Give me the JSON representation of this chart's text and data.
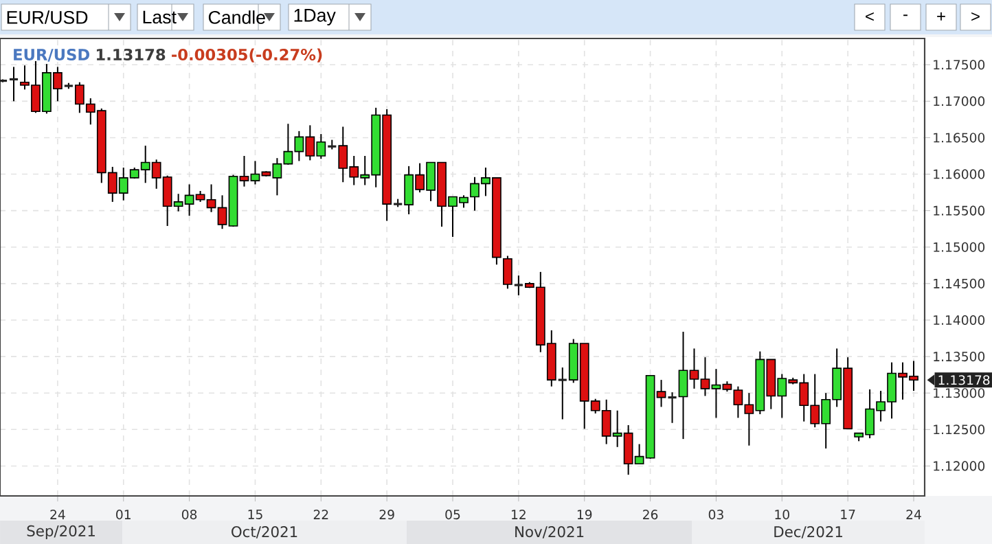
{
  "chart_data": {
    "type": "candlestick",
    "title": "EUR/USD",
    "subtitle": "1.13178",
    "annotations": [
      "-0.00305(-0.27%)",
      "EUR/USD",
      "Last",
      "Candle",
      "1Day",
      "<",
      "-",
      "+",
      ">",
      "Sep/2021",
      "Oct/2021",
      "Nov/2021",
      "Dec/2021",
      "1.13178"
    ],
    "categories": [
      null,
      null,
      null,
      null,
      null,
      "24",
      null,
      null,
      null,
      null,
      null,
      "01",
      null,
      null,
      null,
      null,
      null,
      "08",
      null,
      null,
      null,
      null,
      null,
      "15",
      null,
      null,
      null,
      null,
      null,
      "22",
      null,
      null,
      null,
      null,
      null,
      "29",
      null,
      null,
      null,
      null,
      null,
      "05",
      null,
      null,
      null,
      null,
      null,
      "12",
      null,
      null,
      null,
      null,
      null,
      "19",
      null,
      null,
      null,
      null,
      null,
      "26",
      null,
      null,
      null,
      null,
      null,
      "03",
      null,
      null,
      null,
      null,
      null,
      "10",
      null,
      null,
      null,
      null,
      null,
      "17",
      null,
      null,
      null,
      null,
      null,
      "24"
    ],
    "ohlc": [
      [
        1.1728,
        1.173,
        1.1726,
        1.1728
      ],
      [
        1.173,
        1.1747,
        1.17,
        1.173
      ],
      [
        1.1726,
        1.1749,
        1.1716,
        1.1722
      ],
      [
        1.1722,
        1.1755,
        1.1684,
        1.1686
      ],
      [
        1.1686,
        1.1751,
        1.1683,
        1.1739
      ],
      [
        1.1739,
        1.1747,
        1.17,
        1.1717
      ],
      [
        1.1721,
        1.1725,
        1.1717,
        1.1721
      ],
      [
        1.1722,
        1.1726,
        1.1684,
        1.1696
      ],
      [
        1.1696,
        1.1704,
        1.1668,
        1.1685
      ],
      [
        1.1687,
        1.169,
        1.1588,
        1.1602
      ],
      [
        1.1602,
        1.161,
        1.1562,
        1.1574
      ],
      [
        1.1574,
        1.1609,
        1.1564,
        1.1595
      ],
      [
        1.1595,
        1.1609,
        1.1594,
        1.1606
      ],
      [
        1.1606,
        1.1639,
        1.1588,
        1.1616
      ],
      [
        1.1616,
        1.162,
        1.158,
        1.1595
      ],
      [
        1.1596,
        1.1598,
        1.1529,
        1.1556
      ],
      [
        1.1556,
        1.1573,
        1.1549,
        1.1562
      ],
      [
        1.1559,
        1.1586,
        1.1543,
        1.1571
      ],
      [
        1.1572,
        1.1577,
        1.1562,
        1.1565
      ],
      [
        1.1565,
        1.1586,
        1.1548,
        1.1554
      ],
      [
        1.1554,
        1.1571,
        1.1525,
        1.1531
      ],
      [
        1.1529,
        1.1599,
        1.1528,
        1.1597
      ],
      [
        1.1597,
        1.1625,
        1.1583,
        1.1591
      ],
      [
        1.1591,
        1.1618,
        1.1586,
        1.16
      ],
      [
        1.1603,
        1.1604,
        1.1597,
        1.1598
      ],
      [
        1.1595,
        1.1622,
        1.1571,
        1.1614
      ],
      [
        1.1614,
        1.1669,
        1.1613,
        1.1631
      ],
      [
        1.1631,
        1.1659,
        1.1618,
        1.1651
      ],
      [
        1.1651,
        1.1667,
        1.1619,
        1.1625
      ],
      [
        1.1625,
        1.1655,
        1.1621,
        1.1644
      ],
      [
        1.1638,
        1.1647,
        1.1634,
        1.1638
      ],
      [
        1.1639,
        1.1665,
        1.1589,
        1.1608
      ],
      [
        1.161,
        1.1625,
        1.1585,
        1.1596
      ],
      [
        1.1595,
        1.1625,
        1.1585,
        1.1599
      ],
      [
        1.1599,
        1.1691,
        1.1582,
        1.1681
      ],
      [
        1.1681,
        1.1689,
        1.1536,
        1.1559
      ],
      [
        1.1559,
        1.1566,
        1.1555,
        1.1559
      ],
      [
        1.1558,
        1.1611,
        1.1545,
        1.1599
      ],
      [
        1.1599,
        1.1615,
        1.1575,
        1.1579
      ],
      [
        1.1578,
        1.1616,
        1.1563,
        1.1616
      ],
      [
        1.1616,
        1.1616,
        1.1528,
        1.1556
      ],
      [
        1.1556,
        1.1569,
        1.1514,
        1.1569
      ],
      [
        1.1561,
        1.1571,
        1.1554,
        1.1568
      ],
      [
        1.1569,
        1.1596,
        1.155,
        1.1587
      ],
      [
        1.1587,
        1.1609,
        1.157,
        1.1595
      ],
      [
        1.1595,
        1.1595,
        1.1476,
        1.1486
      ],
      [
        1.1484,
        1.1488,
        1.1443,
        1.1449
      ],
      [
        1.1448,
        1.1461,
        1.1434,
        1.1448
      ],
      [
        1.145,
        1.1452,
        1.1444,
        1.1445
      ],
      [
        1.1445,
        1.1466,
        1.1356,
        1.1366
      ],
      [
        1.1368,
        1.1386,
        1.1309,
        1.1318
      ],
      [
        1.1318,
        1.1335,
        1.1264,
        1.1318
      ],
      [
        1.1318,
        1.1374,
        1.1314,
        1.1368
      ],
      [
        1.1368,
        1.1368,
        1.1251,
        1.1289
      ],
      [
        1.1289,
        1.1292,
        1.1272,
        1.1276
      ],
      [
        1.1276,
        1.1291,
        1.123,
        1.1241
      ],
      [
        1.1241,
        1.1276,
        1.1226,
        1.1245
      ],
      [
        1.1245,
        1.1256,
        1.1188,
        1.1203
      ],
      [
        1.1203,
        1.123,
        1.1203,
        1.1213
      ],
      [
        1.1211,
        1.1324,
        1.121,
        1.1324
      ],
      [
        1.1302,
        1.1318,
        1.1281,
        1.1294
      ],
      [
        1.1294,
        1.1301,
        1.1259,
        1.1294
      ],
      [
        1.1295,
        1.1384,
        1.1237,
        1.1331
      ],
      [
        1.1331,
        1.1361,
        1.1306,
        1.1319
      ],
      [
        1.1319,
        1.1349,
        1.1296,
        1.1306
      ],
      [
        1.1306,
        1.1333,
        1.1266,
        1.1311
      ],
      [
        1.1312,
        1.1316,
        1.1302,
        1.1305
      ],
      [
        1.1304,
        1.1309,
        1.1266,
        1.1284
      ],
      [
        1.1284,
        1.13,
        1.1228,
        1.1272
      ],
      [
        1.1276,
        1.1357,
        1.1271,
        1.1346
      ],
      [
        1.1346,
        1.1346,
        1.1278,
        1.1296
      ],
      [
        1.1296,
        1.1326,
        1.1266,
        1.132
      ],
      [
        1.1318,
        1.1321,
        1.1312,
        1.1314
      ],
      [
        1.1314,
        1.1326,
        1.1261,
        1.1283
      ],
      [
        1.1283,
        1.1326,
        1.1253,
        1.1258
      ],
      [
        1.1258,
        1.13,
        1.1224,
        1.1291
      ],
      [
        1.1291,
        1.1361,
        1.1281,
        1.1334
      ],
      [
        1.1334,
        1.1349,
        1.1251,
        1.1251
      ],
      [
        1.124,
        1.1245,
        1.1234,
        1.1245
      ],
      [
        1.1243,
        1.1305,
        1.1238,
        1.1278
      ],
      [
        1.1276,
        1.1303,
        1.1261,
        1.1288
      ],
      [
        1.1288,
        1.1342,
        1.1265,
        1.1327
      ],
      [
        1.1327,
        1.1342,
        1.1291,
        1.1322
      ],
      [
        1.1323,
        1.1344,
        1.1303,
        1.13178
      ]
    ],
    "colors": [
      "#222222",
      "#222222",
      "#dd1111",
      "#dd1111",
      "#33dd33",
      "#dd1111",
      "#222222",
      "#dd1111",
      "#dd1111",
      "#dd1111",
      "#dd1111",
      "#33dd33",
      "#33dd33",
      "#33dd33",
      "#dd1111",
      "#dd1111",
      "#33dd33",
      "#33dd33",
      "#dd1111",
      "#dd1111",
      "#dd1111",
      "#33dd33",
      "#dd1111",
      "#33dd33",
      "#dd1111",
      "#33dd33",
      "#33dd33",
      "#33dd33",
      "#dd1111",
      "#33dd33",
      "#222222",
      "#dd1111",
      "#dd1111",
      "#33dd33",
      "#33dd33",
      "#dd1111",
      "#222222",
      "#33dd33",
      "#dd1111",
      "#33dd33",
      "#dd1111",
      "#33dd33",
      "#33dd33",
      "#33dd33",
      "#33dd33",
      "#dd1111",
      "#dd1111",
      "#222222",
      "#dd1111",
      "#dd1111",
      "#dd1111",
      "#222222",
      "#33dd33",
      "#dd1111",
      "#dd1111",
      "#dd1111",
      "#33dd33",
      "#dd1111",
      "#33dd33",
      "#33dd33",
      "#dd1111",
      "#222222",
      "#33dd33",
      "#dd1111",
      "#dd1111",
      "#33dd33",
      "#dd1111",
      "#dd1111",
      "#dd1111",
      "#33dd33",
      "#dd1111",
      "#33dd33",
      "#dd1111",
      "#dd1111",
      "#dd1111",
      "#33dd33",
      "#33dd33",
      "#dd1111",
      "#33dd33",
      "#33dd33",
      "#33dd33",
      "#33dd33",
      "#dd1111",
      "#dd1111"
    ],
    "ylim": [
      1.1159,
      1.1786
    ],
    "yticks": [
      {
        "value": 1.12,
        "label": "1.12000"
      },
      {
        "value": 1.125,
        "label": "1.12500"
      },
      {
        "value": 1.13,
        "label": "1.13000"
      },
      {
        "value": 1.135,
        "label": "1.13500"
      },
      {
        "value": 1.14,
        "label": "1.14000"
      },
      {
        "value": 1.145,
        "label": "1.14500"
      },
      {
        "value": 1.15,
        "label": "1.15000"
      },
      {
        "value": 1.155,
        "label": "1.15500"
      },
      {
        "value": 1.16,
        "label": "1.16000"
      },
      {
        "value": 1.165,
        "label": "1.16500"
      },
      {
        "value": 1.17,
        "label": "1.17000"
      },
      {
        "value": 1.175,
        "label": "1.17500"
      }
    ],
    "grid": true
  }
}
